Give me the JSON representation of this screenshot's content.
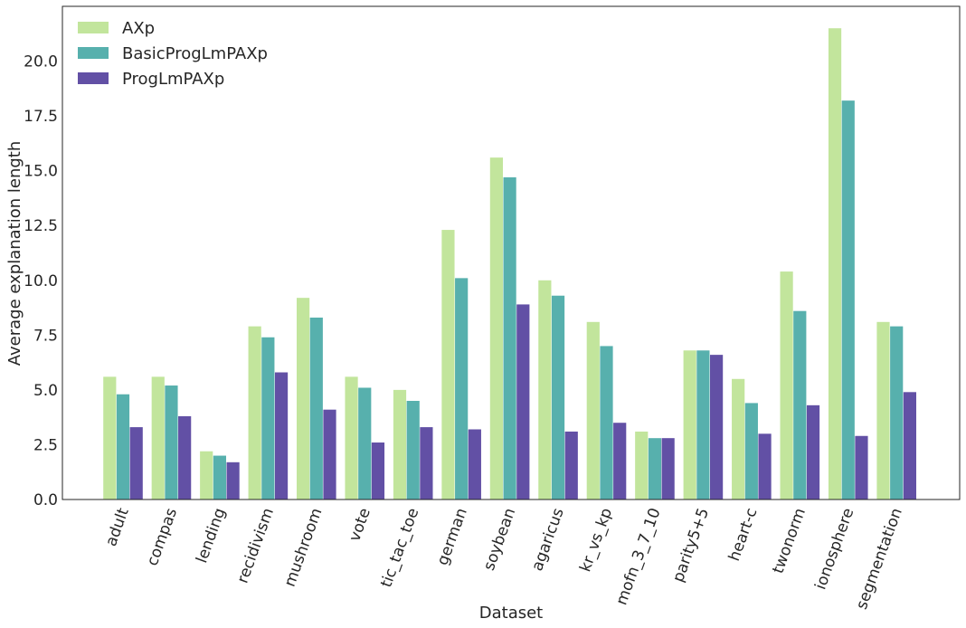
{
  "chart_data": {
    "type": "bar",
    "title": "",
    "xlabel": "Dataset",
    "ylabel": "Average explanation length",
    "ylim": [
      0,
      22.5
    ],
    "yticks": [
      0.0,
      2.5,
      5.0,
      7.5,
      10.0,
      12.5,
      15.0,
      17.5,
      20.0
    ],
    "ytick_labels": [
      "0.0",
      "2.5",
      "5.0",
      "7.5",
      "10.0",
      "12.5",
      "15.0",
      "17.5",
      "20.0"
    ],
    "grid": false,
    "legend_position": "top-left",
    "categories": [
      "adult",
      "compas",
      "lending",
      "recidivism",
      "mushroom",
      "vote",
      "tic_tac_toe",
      "german",
      "soybean",
      "agaricus",
      "kr_vs_kp",
      "mofn_3_7_10",
      "parity5+5",
      "heart-c",
      "twonorm",
      "ionosphere",
      "segmentation"
    ],
    "series": [
      {
        "name": "AXp",
        "color": "#c2e59c",
        "values": [
          5.6,
          5.6,
          2.2,
          7.9,
          9.2,
          5.6,
          5.0,
          12.3,
          15.6,
          10.0,
          8.1,
          3.1,
          6.8,
          5.5,
          10.4,
          21.5,
          8.1
        ]
      },
      {
        "name": "BasicProgLmPAXp",
        "color": "#57b0ad",
        "values": [
          4.8,
          5.2,
          2.0,
          7.4,
          8.3,
          5.1,
          4.5,
          10.1,
          14.7,
          9.3,
          7.0,
          2.8,
          6.8,
          4.4,
          8.6,
          18.2,
          7.9
        ]
      },
      {
        "name": "ProgLmPAXp",
        "color": "#6250a5",
        "values": [
          3.3,
          3.8,
          1.7,
          5.8,
          4.1,
          2.6,
          3.3,
          3.2,
          8.9,
          3.1,
          3.5,
          2.8,
          6.6,
          3.0,
          4.3,
          2.9,
          4.9
        ]
      }
    ]
  }
}
